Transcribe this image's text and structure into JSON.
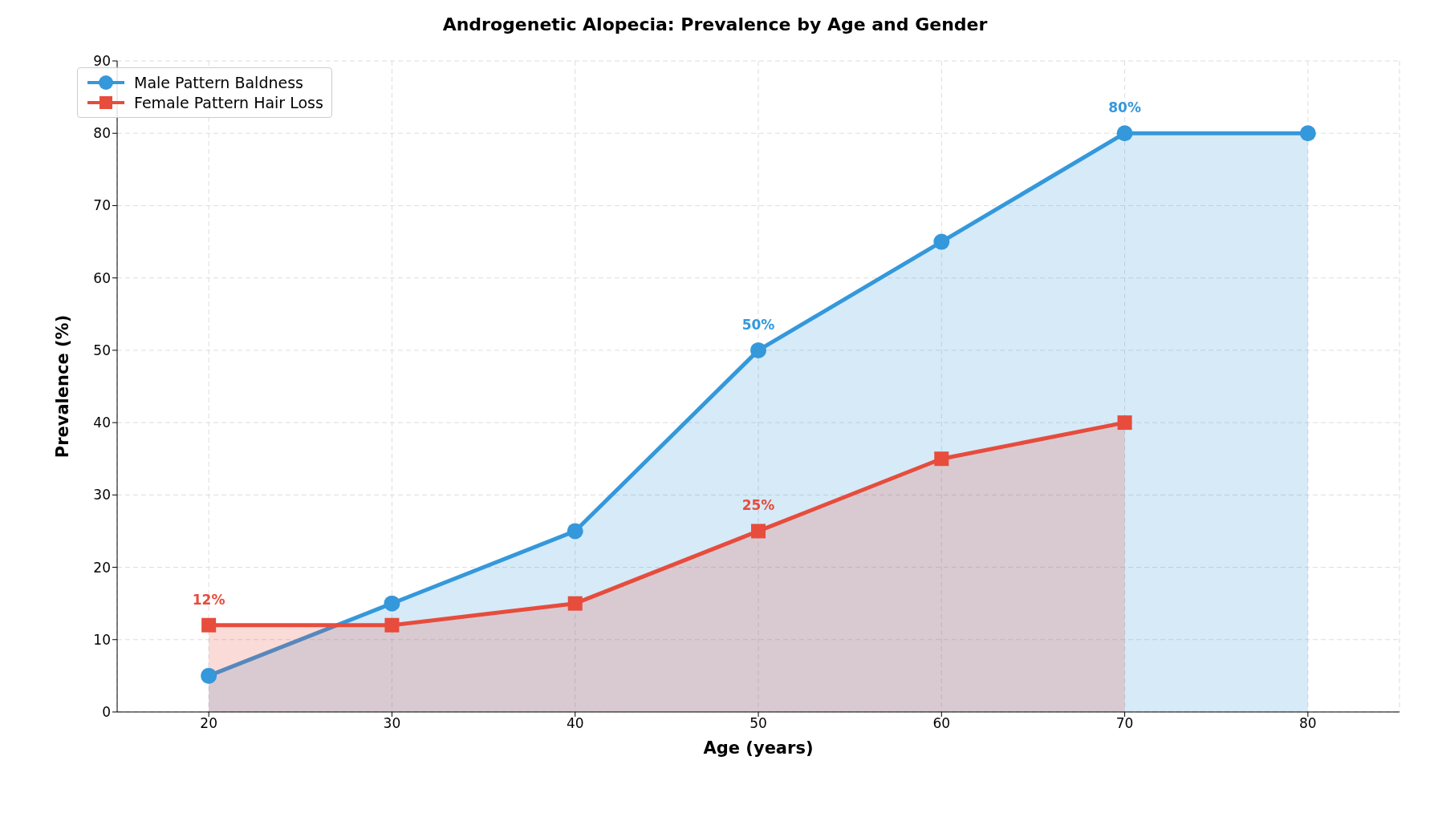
{
  "chart_data": {
    "type": "area",
    "title": "Androgenetic Alopecia: Prevalence by Age and Gender",
    "xlabel": "Age (years)",
    "ylabel": "Prevalence (%)",
    "x": [
      20,
      30,
      40,
      50,
      60,
      70,
      80
    ],
    "series": [
      {
        "name": "Male Pattern Baldness",
        "color": "#3498db",
        "marker": "circle",
        "values": [
          5,
          15,
          25,
          50,
          65,
          80,
          80
        ]
      },
      {
        "name": "Female Pattern Hair Loss",
        "color": "#e74c3c",
        "marker": "square",
        "values": [
          12,
          12,
          15,
          25,
          35,
          40,
          null
        ]
      }
    ],
    "xlim": [
      15,
      85
    ],
    "xticks": [
      20,
      30,
      40,
      50,
      60,
      70,
      80
    ],
    "ylim": [
      0,
      90
    ],
    "yticks": [
      0,
      10,
      20,
      30,
      40,
      50,
      60,
      70,
      80,
      90
    ],
    "grid": true,
    "line_style": "solid",
    "legend": "top left",
    "annotations": [
      {
        "text": "50%",
        "x": 50,
        "y": 50
      },
      {
        "text": "80%",
        "x": 70,
        "y": 80
      },
      {
        "text": "12%",
        "x": 20,
        "y": 12
      },
      {
        "text": "25%",
        "x": 50,
        "y": 25
      }
    ]
  }
}
